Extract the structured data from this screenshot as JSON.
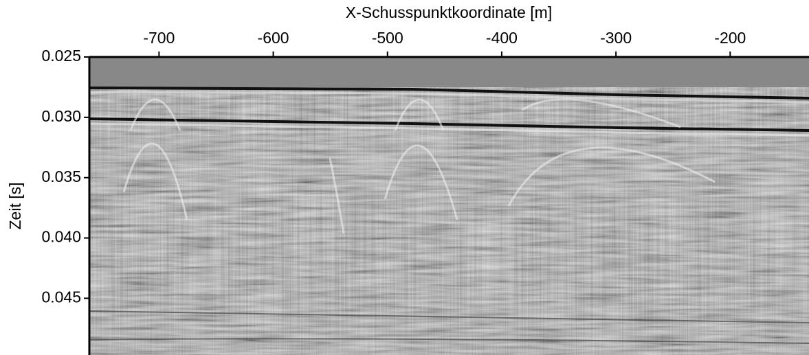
{
  "chart_data": {
    "type": "seismic-image",
    "xlabel": "X-Schusspunktkoordinate [m]",
    "ylabel": "Zeit [s]",
    "xlim": [
      -761,
      -131
    ],
    "xticks": [
      -700,
      -600,
      -500,
      -400,
      -300,
      -200
    ],
    "ylim": [
      0.025,
      0.0497
    ],
    "y_inverted": true,
    "yticks": [
      0.025,
      {
        "value": 0.03,
        "label": "0.030"
      },
      0.035,
      {
        "value": 0.04,
        "label": "0.040"
      },
      0.045
    ]
  }
}
